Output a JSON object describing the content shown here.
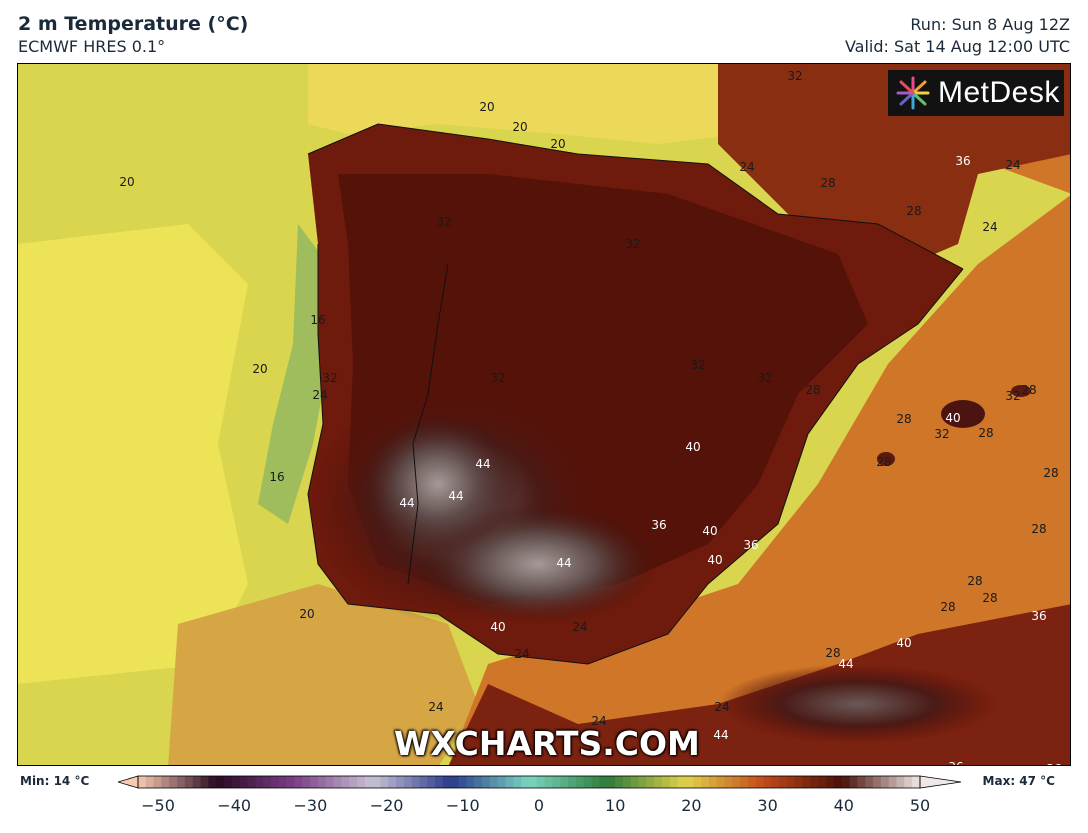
{
  "header": {
    "title": "2 m Temperature (°C)",
    "model": "ECMWF HRES 0.1°",
    "run": "Run: Sun 8 Aug 12Z",
    "valid": "Valid: Sat 14 Aug 12:00 UTC"
  },
  "logo": {
    "text": "MetDesk"
  },
  "watermark": "WXCHARTS.COM",
  "colorbar": {
    "min_label": "Min: 14 °C",
    "max_label": "Max: 47 °C",
    "range": [
      -50,
      50
    ],
    "ticks": [
      "−50",
      "−40",
      "−30",
      "−20",
      "−10",
      "0",
      "10",
      "20",
      "30",
      "40",
      "50"
    ]
  },
  "contour_labels": [
    {
      "text": "32",
      "value": 32
    },
    {
      "text": "20",
      "value": 20
    },
    {
      "text": "20",
      "value": 20
    },
    {
      "text": "20",
      "value": 20
    },
    {
      "text": "24",
      "value": 24
    },
    {
      "text": "36",
      "value": 36
    },
    {
      "text": "24",
      "value": 24
    },
    {
      "text": "20",
      "value": 20
    },
    {
      "text": "28",
      "value": 28
    },
    {
      "text": "28",
      "value": 28
    },
    {
      "text": "24",
      "value": 24
    },
    {
      "text": "32",
      "value": 32
    },
    {
      "text": "32",
      "value": 32
    },
    {
      "text": "16",
      "value": 16
    },
    {
      "text": "20",
      "value": 20
    },
    {
      "text": "32",
      "value": 32
    },
    {
      "text": "24",
      "value": 24
    },
    {
      "text": "32",
      "value": 32
    },
    {
      "text": "32",
      "value": 32
    },
    {
      "text": "32",
      "value": 32
    },
    {
      "text": "28",
      "value": 28
    },
    {
      "text": "28",
      "value": 28
    },
    {
      "text": "40",
      "value": 40
    },
    {
      "text": "32",
      "value": 32
    },
    {
      "text": "28",
      "value": 28
    },
    {
      "text": "28",
      "value": 28
    },
    {
      "text": "32",
      "value": 32
    },
    {
      "text": "16",
      "value": 16
    },
    {
      "text": "44",
      "value": 44
    },
    {
      "text": "44",
      "value": 44
    },
    {
      "text": "44",
      "value": 44
    },
    {
      "text": "40",
      "value": 40
    },
    {
      "text": "28",
      "value": 28
    },
    {
      "text": "28",
      "value": 28
    },
    {
      "text": "36",
      "value": 36
    },
    {
      "text": "40",
      "value": 40
    },
    {
      "text": "28",
      "value": 28
    },
    {
      "text": "36",
      "value": 36
    },
    {
      "text": "40",
      "value": 40
    },
    {
      "text": "44",
      "value": 44
    },
    {
      "text": "28",
      "value": 28
    },
    {
      "text": "28",
      "value": 28
    },
    {
      "text": "28",
      "value": 28
    },
    {
      "text": "20",
      "value": 20
    },
    {
      "text": "36",
      "value": 36
    },
    {
      "text": "40",
      "value": 40
    },
    {
      "text": "24",
      "value": 24
    },
    {
      "text": "40",
      "value": 40
    },
    {
      "text": "28",
      "value": 28
    },
    {
      "text": "24",
      "value": 24
    },
    {
      "text": "44",
      "value": 44
    },
    {
      "text": "24",
      "value": 24
    },
    {
      "text": "24",
      "value": 24
    },
    {
      "text": "24",
      "value": 24
    },
    {
      "text": "44",
      "value": 44
    },
    {
      "text": "36",
      "value": 36
    },
    {
      "text": "36",
      "value": 36
    }
  ]
}
